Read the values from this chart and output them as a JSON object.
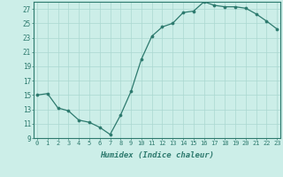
{
  "x": [
    0,
    1,
    2,
    3,
    4,
    5,
    6,
    7,
    8,
    9,
    10,
    11,
    12,
    13,
    14,
    15,
    16,
    17,
    18,
    19,
    20,
    21,
    22,
    23
  ],
  "y": [
    15,
    15.2,
    13.2,
    12.8,
    11.5,
    11.2,
    10.5,
    9.5,
    12.2,
    15.5,
    20,
    23.2,
    24.5,
    25,
    26.5,
    26.7,
    28,
    27.5,
    27.3,
    27.3,
    27.1,
    26.3,
    25.3,
    24.2
  ],
  "xlabel": "Humidex (Indice chaleur)",
  "xlim": [
    -0.3,
    23.3
  ],
  "ylim": [
    9,
    28
  ],
  "yticks": [
    9,
    11,
    13,
    15,
    17,
    19,
    21,
    23,
    25,
    27
  ],
  "xticks": [
    0,
    1,
    2,
    3,
    4,
    5,
    6,
    7,
    8,
    9,
    10,
    11,
    12,
    13,
    14,
    15,
    16,
    17,
    18,
    19,
    20,
    21,
    22,
    23
  ],
  "line_color": "#2d7a6e",
  "marker_color": "#2d7a6e",
  "bg_color": "#cceee8",
  "grid_color": "#aad8d0",
  "axis_color": "#2d7a6e",
  "label_color": "#2d7a6e"
}
